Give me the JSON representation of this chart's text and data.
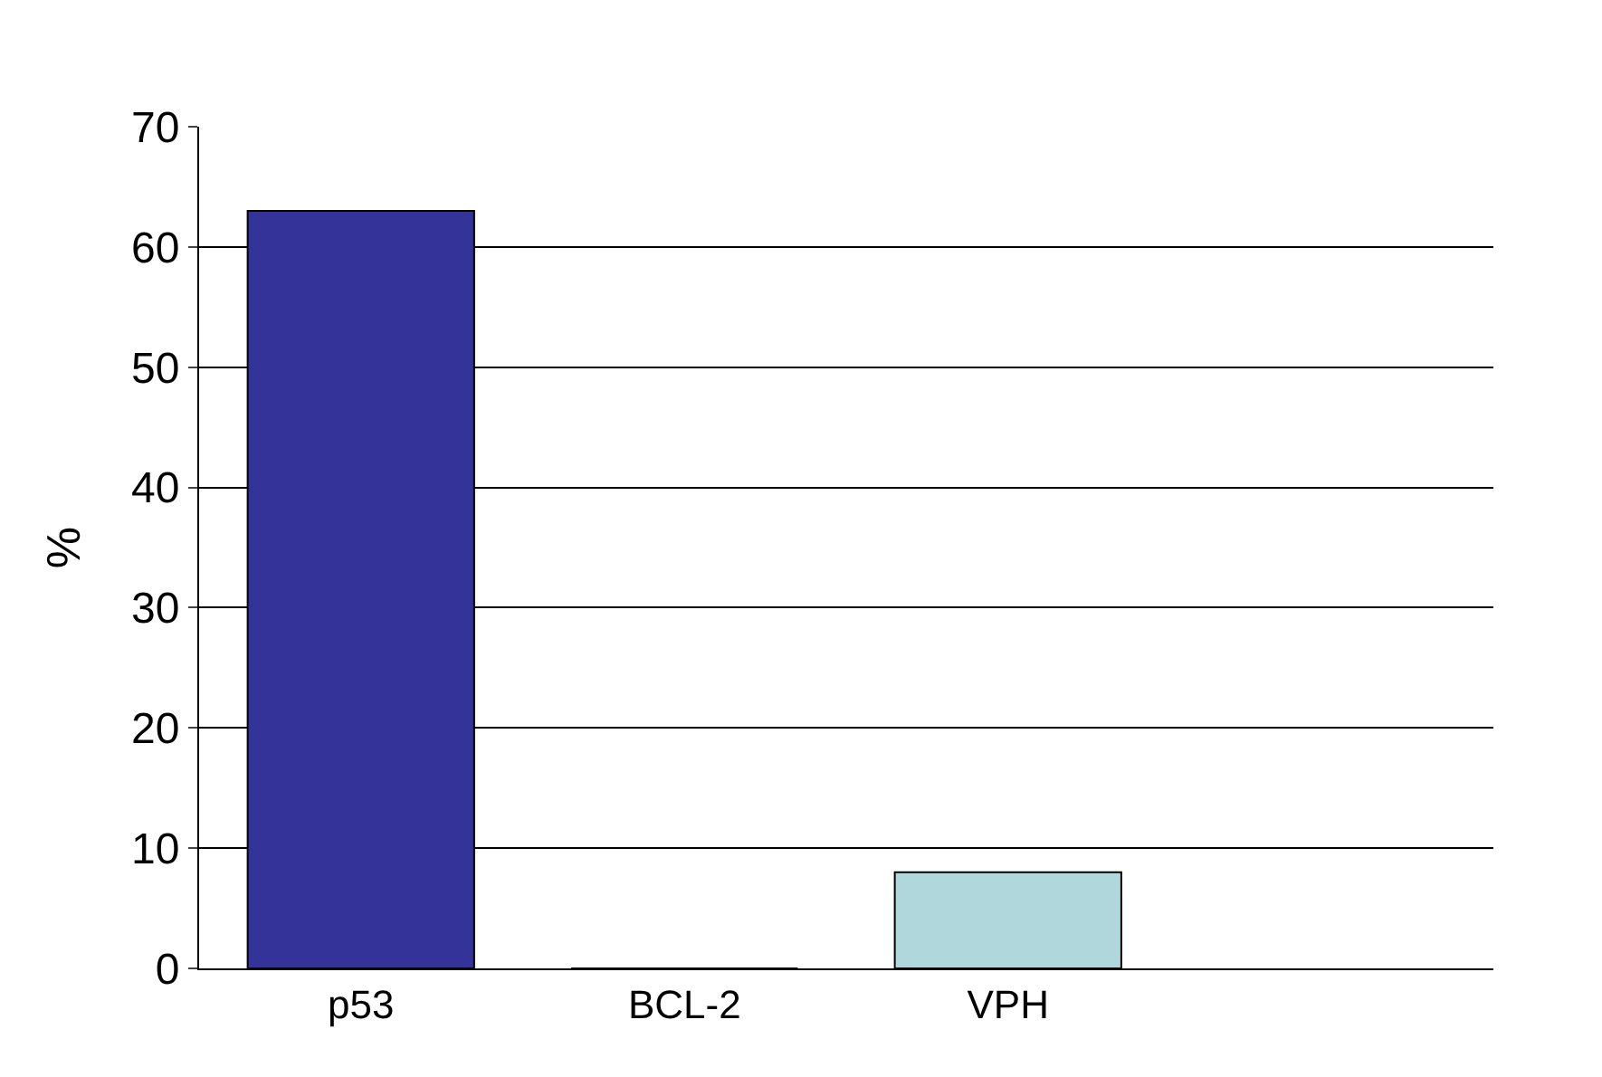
{
  "chart_data": {
    "type": "bar",
    "categories": [
      "p53",
      "BCL-2",
      "VPH",
      null
    ],
    "values": [
      63,
      0,
      8,
      null
    ],
    "colors": [
      "#333399",
      "#007373",
      "#b0d8dc",
      "#000000"
    ],
    "ylabel": "%",
    "ylim": [
      0,
      70
    ],
    "yticks": [
      0,
      10,
      20,
      30,
      40,
      50,
      60,
      70
    ],
    "grid": "y"
  }
}
